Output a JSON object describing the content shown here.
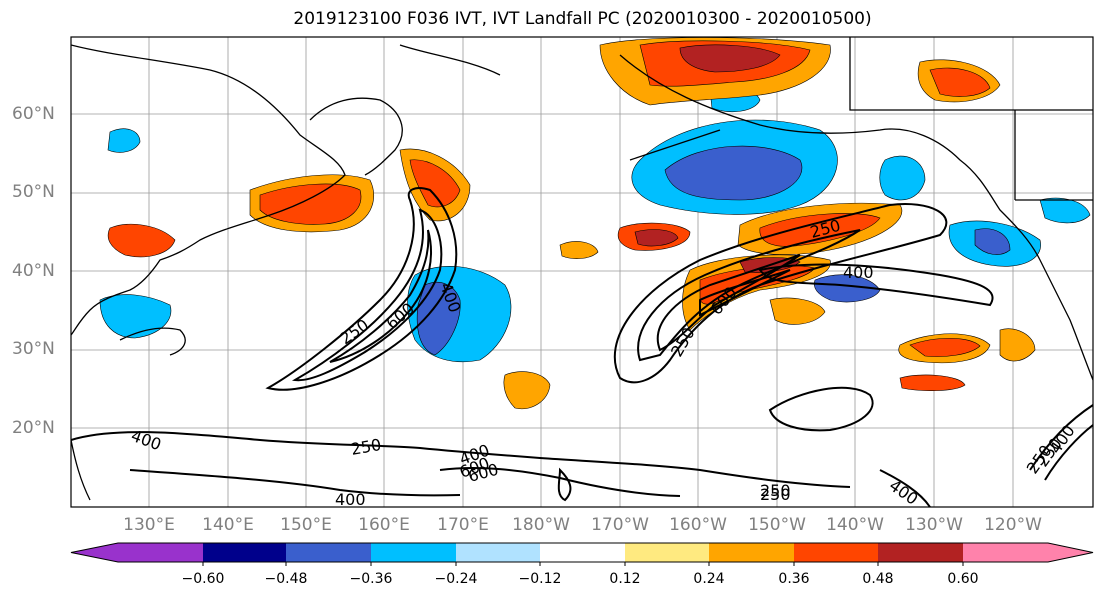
{
  "title": "2019123100 F036 IVT, IVT Landfall PC (2020010300 - 2020010500)",
  "map": {
    "lat_labels": [
      "60°N",
      "50°N",
      "40°N",
      "30°N",
      "20°N"
    ],
    "lon_labels": [
      "130°E",
      "140°E",
      "150°E",
      "160°E",
      "170°E",
      "180°W",
      "170°W",
      "160°W",
      "150°W",
      "140°W",
      "130°W",
      "120°W"
    ],
    "contour_labels": [
      "400",
      "250",
      "600",
      "250",
      "400",
      "600",
      "250",
      "400",
      "600",
      "250",
      "400",
      "250",
      "400",
      "250",
      "600",
      "250",
      "400",
      "250",
      "400"
    ]
  },
  "colorbar": {
    "tick_labels": [
      "−0.60",
      "−0.48",
      "−0.36",
      "−0.24",
      "−0.12",
      "0.12",
      "0.24",
      "0.36",
      "0.48",
      "0.60"
    ],
    "colors": [
      "#9932cc",
      "#00008b",
      "#3a5fcd",
      "#00bfff",
      "#b0e2ff",
      "#ffffff",
      "#ffea80",
      "#ffa500",
      "#ff4500",
      "#b22222",
      "#ff82ab",
      "#ff82ab"
    ]
  }
}
